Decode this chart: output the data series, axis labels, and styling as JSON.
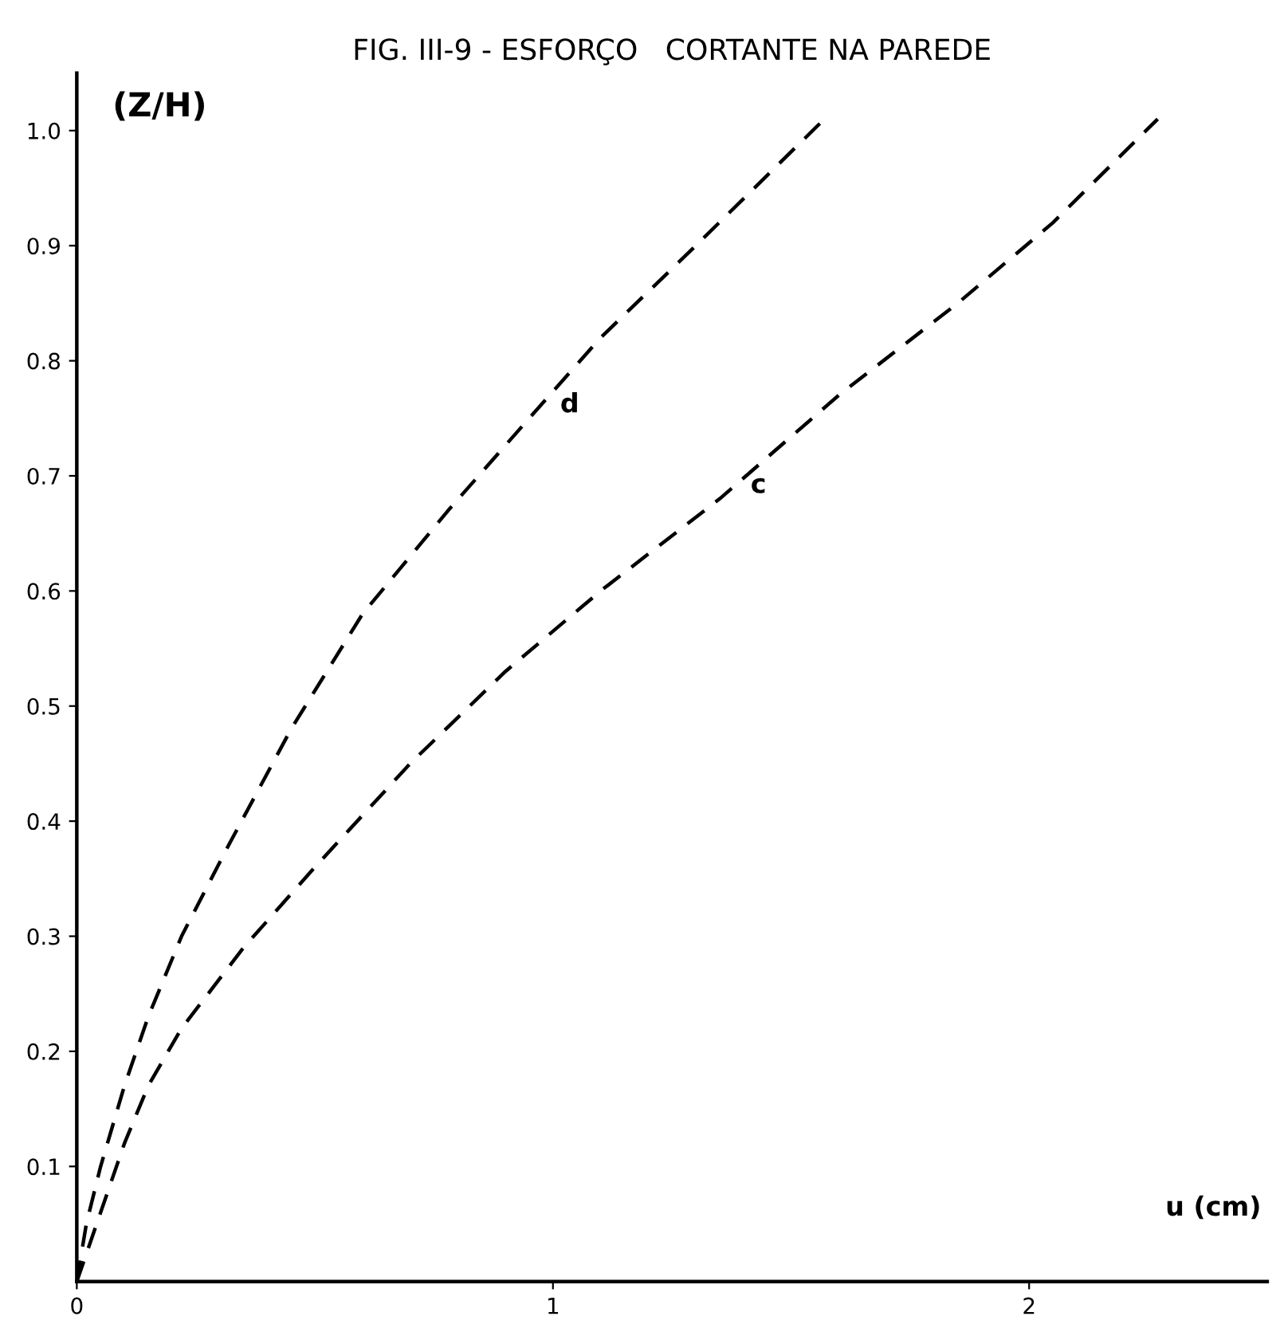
{
  "chart_data": {
    "type": "line",
    "title": "FIG. III-9 - ESFORÇO   CORTANTE NA PAREDE",
    "xlabel": "u (cm)",
    "ylabel": "(Z/H)",
    "line_style": "dashed",
    "marker": "none",
    "grid": false,
    "legend": false,
    "xlim": [
      0,
      2.5
    ],
    "ylim": [
      0,
      1.05
    ],
    "xticks": [
      0,
      1,
      2
    ],
    "yticks": [
      0.1,
      0.2,
      0.3,
      0.4,
      0.5,
      0.6,
      0.7,
      0.8,
      0.9,
      {
        "value": 1.0,
        "label": "1.0"
      }
    ],
    "series": [
      {
        "name": "d",
        "color": "#000000",
        "x": [
          0,
          0.02,
          0.05,
          0.1,
          0.15,
          0.22,
          0.32,
          0.45,
          0.6,
          0.78,
          0.95,
          1.1,
          1.3,
          1.57
        ],
        "values": [
          0,
          0.05,
          0.1,
          0.17,
          0.23,
          0.3,
          0.38,
          0.48,
          0.58,
          0.67,
          0.75,
          0.82,
          0.9,
          1.01
        ]
      },
      {
        "name": "c",
        "color": "#000000",
        "x": [
          0,
          0.05,
          0.1,
          0.15,
          0.22,
          0.35,
          0.5,
          0.7,
          0.9,
          1.1,
          1.35,
          1.6,
          1.85,
          2.05,
          2.27
        ],
        "values": [
          0,
          0.06,
          0.12,
          0.17,
          0.22,
          0.29,
          0.36,
          0.45,
          0.53,
          0.6,
          0.68,
          0.77,
          0.85,
          0.92,
          1.01
        ]
      }
    ]
  }
}
